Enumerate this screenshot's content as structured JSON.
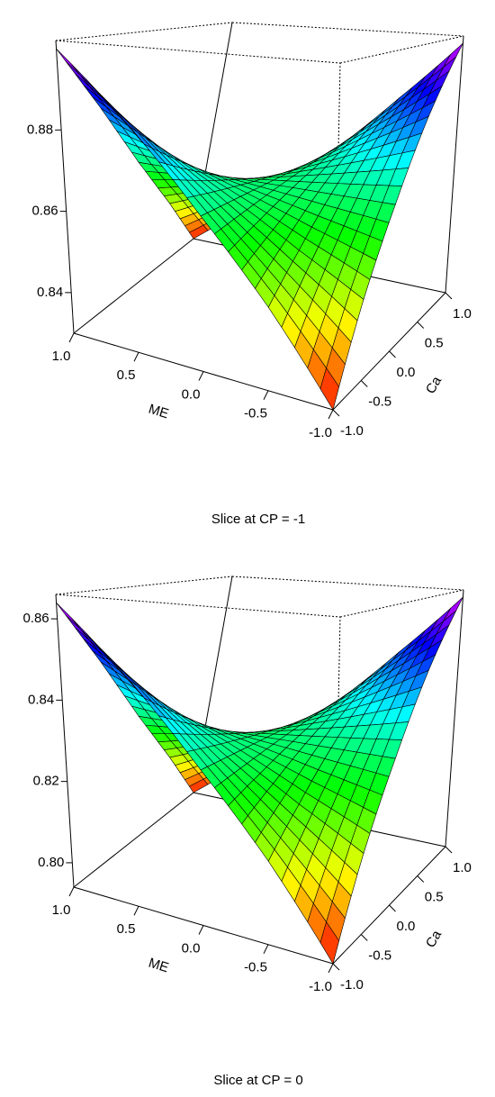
{
  "chart_data": [
    {
      "type": "surface",
      "title": "Slice at CP = -1",
      "xlabel": "ME",
      "ylabel": "Ca",
      "x": [
        -1,
        -0.5,
        0,
        0.5,
        1
      ],
      "y": [
        -1,
        -0.5,
        0,
        0.5,
        1
      ],
      "z": [
        [
          0.83,
          0.848,
          0.865,
          0.883,
          0.9
        ],
        [
          0.848,
          0.856,
          0.865,
          0.874,
          0.883
        ],
        [
          0.865,
          0.865,
          0.865,
          0.865,
          0.865
        ],
        [
          0.883,
          0.874,
          0.865,
          0.856,
          0.848
        ],
        [
          0.9,
          0.883,
          0.865,
          0.848,
          0.83
        ]
      ],
      "xlim": [
        -1,
        1
      ],
      "ylim": [
        -1,
        1
      ],
      "zlim": [
        0.83,
        0.902
      ],
      "xticks": [
        {
          "value": -1,
          "label": "-1.0"
        },
        -0.5,
        {
          "value": 0,
          "label": "0.0"
        },
        0.5,
        {
          "value": 1,
          "label": "1.0"
        }
      ],
      "yticks": [
        {
          "value": -1,
          "label": "-1.0"
        },
        -0.5,
        {
          "value": 0,
          "label": "0.0"
        },
        0.5,
        {
          "value": 1,
          "label": "1.0"
        }
      ],
      "zticks": [
        0.84,
        0.86,
        0.88
      ]
    },
    {
      "type": "surface",
      "title": "Slice at CP = 0",
      "xlabel": "ME",
      "ylabel": "Ca",
      "x": [
        -1,
        -0.5,
        0,
        0.5,
        1
      ],
      "y": [
        -1,
        -0.5,
        0,
        0.5,
        1
      ],
      "z": [
        [
          0.794,
          0.812,
          0.829,
          0.847,
          0.864
        ],
        [
          0.812,
          0.82,
          0.829,
          0.838,
          0.847
        ],
        [
          0.829,
          0.829,
          0.829,
          0.829,
          0.829
        ],
        [
          0.847,
          0.838,
          0.829,
          0.82,
          0.812
        ],
        [
          0.864,
          0.847,
          0.829,
          0.812,
          0.794
        ]
      ],
      "xlim": [
        -1,
        1
      ],
      "ylim": [
        -1,
        1
      ],
      "zlim": [
        0.794,
        0.866
      ],
      "xticks": [
        {
          "value": -1,
          "label": "-1.0"
        },
        -0.5,
        {
          "value": 0,
          "label": "0.0"
        },
        0.5,
        {
          "value": 1,
          "label": "1.0"
        }
      ],
      "yticks": [
        {
          "value": -1,
          "label": "-1.0"
        },
        -0.5,
        {
          "value": 0,
          "label": "0.0"
        },
        0.5,
        {
          "value": 1,
          "label": "1.0"
        }
      ],
      "zticks": [
        {
          "value": 0.8,
          "label": "0.80"
        },
        0.82,
        0.84,
        0.86
      ]
    }
  ]
}
